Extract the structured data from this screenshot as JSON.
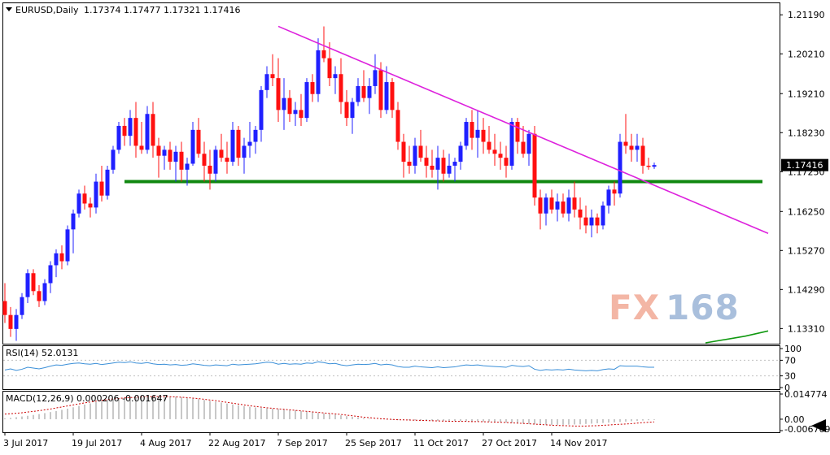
{
  "header": {
    "symbol_tf": "EURUSD,Daily",
    "ohlc": "1.17374 1.17477 1.17321 1.17416"
  },
  "watermark": {
    "part1": "FX",
    "part2": "168"
  },
  "colors": {
    "bull": "#2020ff",
    "bear": "#ff1010",
    "trendline": "#dd22dd",
    "support": "#118811",
    "rsi": "#3a8fd8",
    "macd_signal": "#cc0000",
    "macd_hist": "#b0b0b0",
    "ma": "#119911"
  },
  "chart_data": {
    "type": "candlestick",
    "main": {
      "price_axis_ticks": [
        "1.21190",
        "1.20210",
        "1.19210",
        "1.18230",
        "1.17250",
        "1.16250",
        "1.15270",
        "1.14290",
        "1.13310"
      ],
      "current_price_label": "1.17416",
      "current_price": 1.17416,
      "ylim": [
        1.1295,
        1.2146
      ],
      "x_labels": [
        {
          "label": "3 Jul 2017",
          "index": 0
        },
        {
          "label": "19 Jul 2017",
          "index": 12
        },
        {
          "label": "4 Aug 2017",
          "index": 24
        },
        {
          "label": "22 Aug 2017",
          "index": 36
        },
        {
          "label": "7 Sep 2017",
          "index": 48
        },
        {
          "label": "25 Sep 2017",
          "index": 60
        },
        {
          "label": "11 Oct 2017",
          "index": 72
        },
        {
          "label": "27 Oct 2017",
          "index": 84
        },
        {
          "label": "14 Nov 2017",
          "index": 96
        }
      ],
      "candles": [
        [
          1.14,
          1.1445,
          1.1345,
          1.1365
        ],
        [
          1.1365,
          1.1385,
          1.131,
          1.133
        ],
        [
          1.133,
          1.138,
          1.13,
          1.1365
        ],
        [
          1.1365,
          1.142,
          1.1355,
          1.141
        ],
        [
          1.141,
          1.148,
          1.1395,
          1.147
        ],
        [
          1.147,
          1.148,
          1.1415,
          1.1425
        ],
        [
          1.1425,
          1.144,
          1.1385,
          1.14
        ],
        [
          1.14,
          1.1455,
          1.139,
          1.1445
        ],
        [
          1.1445,
          1.15,
          1.142,
          1.149
        ],
        [
          1.149,
          1.153,
          1.146,
          1.152
        ],
        [
          1.152,
          1.154,
          1.148,
          1.15
        ],
        [
          1.15,
          1.159,
          1.149,
          1.158
        ],
        [
          1.158,
          1.163,
          1.152,
          1.162
        ],
        [
          1.162,
          1.168,
          1.161,
          1.167
        ],
        [
          1.167,
          1.169,
          1.163,
          1.1645
        ],
        [
          1.1645,
          1.166,
          1.161,
          1.1635
        ],
        [
          1.1635,
          1.172,
          1.162,
          1.17
        ],
        [
          1.17,
          1.174,
          1.165,
          1.1665
        ],
        [
          1.1665,
          1.174,
          1.1655,
          1.173
        ],
        [
          1.173,
          1.179,
          1.172,
          1.178
        ],
        [
          1.178,
          1.185,
          1.177,
          1.184
        ],
        [
          1.184,
          1.186,
          1.179,
          1.1815
        ],
        [
          1.1815,
          1.188,
          1.179,
          1.186
        ],
        [
          1.186,
          1.19,
          1.176,
          1.179
        ],
        [
          1.179,
          1.185,
          1.177,
          1.178
        ],
        [
          1.178,
          1.189,
          1.177,
          1.187
        ],
        [
          1.187,
          1.19,
          1.176,
          1.179
        ],
        [
          1.179,
          1.181,
          1.171,
          1.1765
        ],
        [
          1.1765,
          1.179,
          1.173,
          1.178
        ],
        [
          1.178,
          1.18,
          1.173,
          1.175
        ],
        [
          1.175,
          1.179,
          1.17,
          1.1775
        ],
        [
          1.1775,
          1.18,
          1.17,
          1.173
        ],
        [
          1.173,
          1.176,
          1.169,
          1.1745
        ],
        [
          1.1745,
          1.185,
          1.174,
          1.183
        ],
        [
          1.183,
          1.186,
          1.176,
          1.177
        ],
        [
          1.177,
          1.18,
          1.17,
          1.174
        ],
        [
          1.174,
          1.178,
          1.168,
          1.172
        ],
        [
          1.172,
          1.179,
          1.17,
          1.178
        ],
        [
          1.178,
          1.182,
          1.175,
          1.176
        ],
        [
          1.176,
          1.18,
          1.172,
          1.175
        ],
        [
          1.175,
          1.185,
          1.174,
          1.183
        ],
        [
          1.183,
          1.184,
          1.174,
          1.176
        ],
        [
          1.176,
          1.181,
          1.172,
          1.179
        ],
        [
          1.179,
          1.185,
          1.176,
          1.18
        ],
        [
          1.18,
          1.184,
          1.177,
          1.183
        ],
        [
          1.183,
          1.194,
          1.18,
          1.193
        ],
        [
          1.193,
          1.199,
          1.191,
          1.197
        ],
        [
          1.197,
          1.202,
          1.194,
          1.196
        ],
        [
          1.196,
          1.201,
          1.185,
          1.188
        ],
        [
          1.188,
          1.196,
          1.183,
          1.191
        ],
        [
          1.191,
          1.193,
          1.185,
          1.187
        ],
        [
          1.187,
          1.19,
          1.184,
          1.188
        ],
        [
          1.188,
          1.192,
          1.184,
          1.186
        ],
        [
          1.186,
          1.196,
          1.185,
          1.195
        ],
        [
          1.195,
          1.197,
          1.19,
          1.192
        ],
        [
          1.192,
          1.206,
          1.19,
          1.203
        ],
        [
          1.203,
          1.209,
          1.2,
          1.201
        ],
        [
          1.201,
          1.205,
          1.194,
          1.196
        ],
        [
          1.196,
          1.199,
          1.192,
          1.197
        ],
        [
          1.197,
          1.201,
          1.187,
          1.19
        ],
        [
          1.19,
          1.193,
          1.184,
          1.186
        ],
        [
          1.186,
          1.191,
          1.182,
          1.19
        ],
        [
          1.19,
          1.196,
          1.189,
          1.194
        ],
        [
          1.194,
          1.198,
          1.19,
          1.191
        ],
        [
          1.191,
          1.196,
          1.187,
          1.194
        ],
        [
          1.194,
          1.202,
          1.192,
          1.198
        ],
        [
          1.198,
          1.2,
          1.186,
          1.188
        ],
        [
          1.188,
          1.199,
          1.187,
          1.195
        ],
        [
          1.195,
          1.196,
          1.186,
          1.188
        ],
        [
          1.188,
          1.19,
          1.178,
          1.18
        ],
        [
          1.18,
          1.182,
          1.171,
          1.175
        ],
        [
          1.175,
          1.179,
          1.172,
          1.174
        ],
        [
          1.174,
          1.181,
          1.172,
          1.179
        ],
        [
          1.179,
          1.183,
          1.175,
          1.176
        ],
        [
          1.176,
          1.179,
          1.171,
          1.174
        ],
        [
          1.174,
          1.178,
          1.171,
          1.173
        ],
        [
          1.173,
          1.179,
          1.168,
          1.176
        ],
        [
          1.176,
          1.178,
          1.17,
          1.172
        ],
        [
          1.172,
          1.177,
          1.171,
          1.174
        ],
        [
          1.174,
          1.176,
          1.17,
          1.175
        ],
        [
          1.175,
          1.18,
          1.173,
          1.179
        ],
        [
          1.179,
          1.186,
          1.178,
          1.185
        ],
        [
          1.185,
          1.188,
          1.178,
          1.181
        ],
        [
          1.181,
          1.188,
          1.176,
          1.183
        ],
        [
          1.183,
          1.186,
          1.177,
          1.18
        ],
        [
          1.18,
          1.184,
          1.177,
          1.178
        ],
        [
          1.178,
          1.182,
          1.174,
          1.177
        ],
        [
          1.177,
          1.18,
          1.173,
          1.176
        ],
        [
          1.176,
          1.179,
          1.171,
          1.174
        ],
        [
          1.174,
          1.186,
          1.173,
          1.185
        ],
        [
          1.185,
          1.186,
          1.177,
          1.18
        ],
        [
          1.18,
          1.184,
          1.176,
          1.177
        ],
        [
          1.177,
          1.183,
          1.174,
          1.182
        ],
        [
          1.182,
          1.184,
          1.164,
          1.166
        ],
        [
          1.166,
          1.168,
          1.158,
          1.162
        ],
        [
          1.162,
          1.167,
          1.159,
          1.166
        ],
        [
          1.166,
          1.168,
          1.162,
          1.163
        ],
        [
          1.163,
          1.167,
          1.16,
          1.165
        ],
        [
          1.165,
          1.167,
          1.161,
          1.162
        ],
        [
          1.162,
          1.168,
          1.16,
          1.166
        ],
        [
          1.166,
          1.17,
          1.161,
          1.163
        ],
        [
          1.163,
          1.166,
          1.158,
          1.161
        ],
        [
          1.161,
          1.164,
          1.157,
          1.159
        ],
        [
          1.159,
          1.163,
          1.156,
          1.161
        ],
        [
          1.161,
          1.162,
          1.157,
          1.159
        ],
        [
          1.159,
          1.165,
          1.158,
          1.164
        ],
        [
          1.164,
          1.169,
          1.162,
          1.168
        ],
        [
          1.168,
          1.17,
          1.164,
          1.167
        ],
        [
          1.167,
          1.182,
          1.166,
          1.18
        ],
        [
          1.18,
          1.187,
          1.177,
          1.179
        ],
        [
          1.179,
          1.182,
          1.175,
          1.178
        ],
        [
          1.178,
          1.182,
          1.175,
          1.179
        ],
        [
          1.179,
          1.181,
          1.172,
          1.174
        ],
        [
          1.174,
          1.176,
          1.173,
          1.1737
        ],
        [
          1.17374,
          1.17477,
          1.17321,
          1.17416
        ]
      ],
      "trendline": {
        "from": [
          48,
          1.209
        ],
        "to": [
          134,
          1.157
        ]
      },
      "support_line": {
        "from": [
          21,
          1.17
        ],
        "to": [
          133,
          1.17
        ]
      },
      "moving_average": [
        [
          123,
          1.1295
        ],
        [
          130,
          1.1312
        ],
        [
          134,
          1.1325
        ]
      ]
    },
    "rsi": {
      "label": "RSI(14) 52.0131",
      "ticks": [
        "100",
        "70",
        "30",
        "0"
      ],
      "ylim": [
        0,
        100
      ],
      "values": [
        45,
        48,
        44,
        47,
        52,
        50,
        48,
        51,
        55,
        58,
        57,
        60,
        62,
        63,
        61,
        60,
        62,
        59,
        61,
        63,
        65,
        64,
        66,
        63,
        62,
        64,
        61,
        59,
        60,
        58,
        59,
        57,
        58,
        61,
        59,
        57,
        56,
        58,
        57,
        56,
        60,
        58,
        59,
        60,
        61,
        63,
        65,
        64,
        60,
        62,
        60,
        61,
        60,
        63,
        62,
        66,
        64,
        61,
        62,
        58,
        56,
        58,
        60,
        59,
        60,
        62,
        58,
        60,
        58,
        54,
        52,
        52,
        55,
        53,
        52,
        51,
        53,
        51,
        52,
        53,
        56,
        58,
        57,
        58,
        56,
        55,
        54,
        53,
        52,
        57,
        55,
        54,
        56,
        47,
        44,
        46,
        45,
        46,
        45,
        47,
        45,
        44,
        43,
        44,
        43,
        46,
        48,
        47,
        56,
        55,
        55,
        55,
        53,
        52,
        52
      ]
    },
    "macd": {
      "label": "MACD(12,26,9) 0.000206 -0.001647",
      "ticks": [
        "0.014774",
        "0.00",
        "-0.006709"
      ],
      "ylim": [
        -0.006709,
        0.014774
      ],
      "histogram": [
        0.0005,
        0.0008,
        0.0012,
        0.0016,
        0.002,
        0.0025,
        0.003,
        0.0036,
        0.0042,
        0.0048,
        0.0055,
        0.0062,
        0.007,
        0.0078,
        0.0086,
        0.0093,
        0.01,
        0.0107,
        0.0113,
        0.0118,
        0.0123,
        0.0127,
        0.013,
        0.0132,
        0.0134,
        0.0135,
        0.0136,
        0.0136,
        0.0135,
        0.0134,
        0.0132,
        0.0129,
        0.0126,
        0.0122,
        0.0118,
        0.0113,
        0.0108,
        0.0103,
        0.0098,
        0.0092,
        0.0087,
        0.0082,
        0.0077,
        0.0073,
        0.0069,
        0.0066,
        0.0064,
        0.0062,
        0.006,
        0.0058,
        0.0055,
        0.0052,
        0.0048,
        0.0044,
        0.004,
        0.0037,
        0.0034,
        0.0031,
        0.0027,
        0.0023,
        0.0018,
        0.0014,
        0.001,
        0.0006,
        0.0003,
        0.0001,
        -0.0001,
        -0.0002,
        -0.0003,
        -0.0004,
        -0.0005,
        -0.0006,
        -0.0007,
        -0.0008,
        -0.0009,
        -0.0009,
        -0.001,
        -0.001,
        -0.0011,
        -0.0011,
        -0.0012,
        -0.0012,
        -0.0013,
        -0.0013,
        -0.0014,
        -0.0015,
        -0.0016,
        -0.0018,
        -0.002,
        -0.0022,
        -0.0024,
        -0.0026,
        -0.0028,
        -0.003,
        -0.0031,
        -0.0032,
        -0.0033,
        -0.0033,
        -0.0033,
        -0.0032,
        -0.0031,
        -0.003,
        -0.0028,
        -0.0026,
        -0.0024,
        -0.0022,
        -0.002,
        -0.0018,
        -0.0016,
        -0.0014,
        -0.0012,
        -0.001,
        -0.0008,
        -0.0006,
        -0.0004
      ],
      "signal": [
        0.003,
        0.0032,
        0.0035,
        0.0038,
        0.0042,
        0.0046,
        0.005,
        0.0055,
        0.006,
        0.0066,
        0.0072,
        0.0078,
        0.0084,
        0.009,
        0.0096,
        0.0101,
        0.0106,
        0.0111,
        0.0115,
        0.0119,
        0.0122,
        0.0125,
        0.0127,
        0.0129,
        0.0131,
        0.0132,
        0.0133,
        0.0133,
        0.0133,
        0.0132,
        0.0131,
        0.0129,
        0.0127,
        0.0124,
        0.0121,
        0.0117,
        0.0113,
        0.0109,
        0.0104,
        0.0099,
        0.0094,
        0.0089,
        0.0084,
        0.0079,
        0.0075,
        0.0071,
        0.0067,
        0.0064,
        0.0061,
        0.0058,
        0.0055,
        0.0052,
        0.0049,
        0.0046,
        0.0043,
        0.004,
        0.0037,
        0.0034,
        0.0031,
        0.0028,
        0.0024,
        0.002,
        0.0016,
        0.0012,
        0.0009,
        0.0006,
        0.0003,
        0.0001,
        -0.0001,
        -0.0003,
        -0.0004,
        -0.0005,
        -0.0006,
        -0.0007,
        -0.0008,
        -0.0009,
        -0.001,
        -0.0011,
        -0.0012,
        -0.0012,
        -0.0013,
        -0.0013,
        -0.0014,
        -0.0014,
        -0.0015,
        -0.0016,
        -0.0017,
        -0.0018,
        -0.0019,
        -0.0021,
        -0.0023,
        -0.0025,
        -0.0027,
        -0.0029,
        -0.0031,
        -0.0033,
        -0.0035,
        -0.0037,
        -0.0038,
        -0.0039,
        -0.004,
        -0.004,
        -0.004,
        -0.0039,
        -0.0038,
        -0.0036,
        -0.0034,
        -0.0032,
        -0.003,
        -0.0028,
        -0.0026,
        -0.0023,
        -0.002,
        -0.0018,
        -0.0016
      ]
    }
  }
}
